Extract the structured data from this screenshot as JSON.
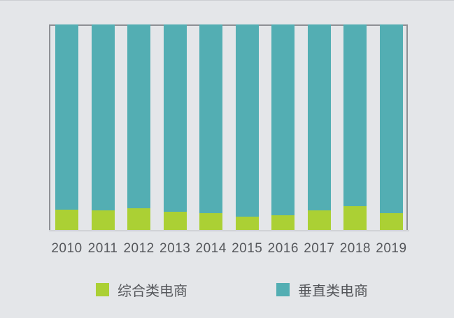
{
  "page": {
    "background_color": "#e4e6e9",
    "frame_color": "#8e9095",
    "baseline_color": "#c3c6ca",
    "label_text_color": "#55575b"
  },
  "chart_data": {
    "type": "bar",
    "stacked": true,
    "unit": "percent",
    "title": "",
    "xlabel": "",
    "ylabel": "",
    "ylim": [
      0,
      100
    ],
    "grid": false,
    "y_axis_shown": false,
    "legend_position": "bottom",
    "categories": [
      "2010",
      "2011",
      "2012",
      "2013",
      "2014",
      "2015",
      "2016",
      "2017",
      "2018",
      "2019"
    ],
    "series": [
      {
        "name": "综合类电商",
        "color": "#abd034",
        "values": [
          10.0,
          9.4,
          10.4,
          9.0,
          8.3,
          6.5,
          7.3,
          9.5,
          11.4,
          8.2
        ]
      },
      {
        "name": "垂直类电商",
        "color": "#53aeb3",
        "values": [
          90.0,
          90.6,
          89.6,
          91.0,
          91.7,
          93.5,
          92.7,
          90.5,
          88.6,
          91.8
        ]
      }
    ]
  }
}
